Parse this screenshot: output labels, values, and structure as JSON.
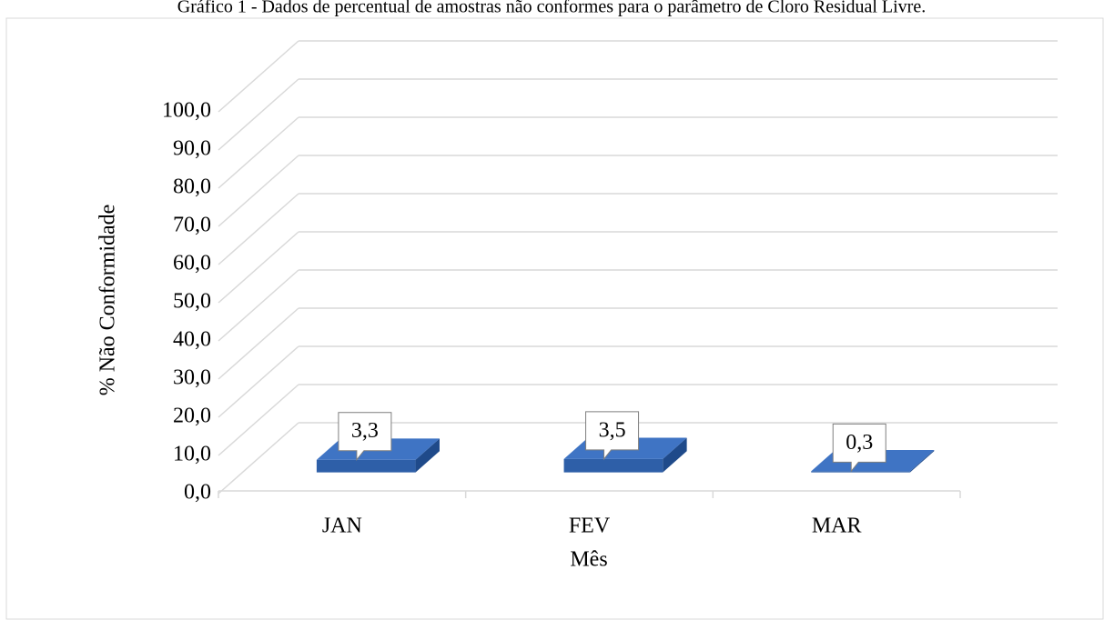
{
  "chart_data": {
    "type": "bar3d",
    "title": "Gráfico 1 - Dados de percentual de amostras não conformes para o parâmetro de Cloro Residual Livre.",
    "xlabel": "Mês",
    "ylabel": "% Não Conformidade",
    "categories": [
      "JAN",
      "FEV",
      "MAR"
    ],
    "values": [
      3.3,
      3.5,
      0.3
    ],
    "value_labels": [
      "3,3",
      "3,5",
      "0,3"
    ],
    "color": "#2e5fa8",
    "ylim": [
      0,
      100
    ],
    "yticks": [
      {
        "value": 0,
        "label": "0,0"
      },
      {
        "value": 10,
        "label": "10,0"
      },
      {
        "value": 20,
        "label": "20,0"
      },
      {
        "value": 30,
        "label": "30,0"
      },
      {
        "value": 40,
        "label": "40,0"
      },
      {
        "value": 50,
        "label": "50,0"
      },
      {
        "value": 60,
        "label": "60,0"
      },
      {
        "value": 70,
        "label": "70,0"
      },
      {
        "value": 80,
        "label": "80,0"
      },
      {
        "value": 90,
        "label": "90,0"
      },
      {
        "value": 100,
        "label": "100,0"
      }
    ],
    "grid": true
  }
}
